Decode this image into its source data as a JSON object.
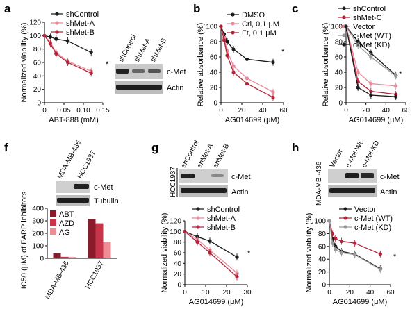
{
  "panels": {
    "a": {
      "letter": "a"
    },
    "b": {
      "letter": "b"
    },
    "c": {
      "letter": "c"
    },
    "f": {
      "letter": "f"
    },
    "g": {
      "letter": "g"
    },
    "h": {
      "letter": "h"
    }
  },
  "blots": {
    "a": {
      "lanes": [
        "shControl",
        "shMet-A",
        "shMet-B"
      ],
      "bands": [
        "c-Met",
        "Actin"
      ]
    },
    "f": {
      "lanes": [
        "MDA-MB-436",
        "HCC1937"
      ],
      "bands": [
        "c-Met",
        "Tubulin"
      ]
    },
    "g": {
      "lanes": [
        "shControl",
        "shMet-A",
        "shMet-B"
      ],
      "bands": [
        "c-Met",
        "Actin"
      ],
      "cell_line": "HCC1937"
    },
    "h": {
      "lanes": [
        "Vector",
        "c-Met-Wt",
        "c-Met-KD"
      ],
      "bands": [
        "c-Met",
        "Actin"
      ],
      "cell_line": "MDA-MB -436"
    }
  },
  "colors": {
    "black": "#1a1a1a",
    "red": "#b3243a",
    "pink": "#e88a9a",
    "gray": "#9a9a9a",
    "darkred": "#8b1a2b",
    "midred": "#c8354a",
    "lightred": "#ef8c95"
  },
  "chart_data": [
    {
      "id": "a",
      "type": "line",
      "xlabel": "ABT-888 (mM)",
      "ylabel": "Normalized viability (%)",
      "xlim": [
        0,
        0.15
      ],
      "ylim": [
        0,
        120
      ],
      "xticks": [
        "0",
        "0.05",
        "0.10",
        "0.15"
      ],
      "yticks": [
        "0",
        "20",
        "40",
        "60",
        "80",
        "100",
        "120"
      ],
      "annotation": "*",
      "series": [
        {
          "name": "shControl",
          "color": "#1a1a1a",
          "x": [
            0,
            0.015,
            0.03,
            0.06,
            0.12
          ],
          "y": [
            100,
            98,
            95,
            92,
            75
          ]
        },
        {
          "name": "shMet-A",
          "color": "#e88a9a",
          "x": [
            0,
            0.015,
            0.03,
            0.06,
            0.12
          ],
          "y": [
            100,
            90,
            75,
            62,
            47
          ]
        },
        {
          "name": "shMet-B",
          "color": "#b3243a",
          "x": [
            0,
            0.015,
            0.03,
            0.06,
            0.12
          ],
          "y": [
            100,
            88,
            73,
            60,
            44
          ]
        }
      ]
    },
    {
      "id": "b",
      "type": "line",
      "xlabel": "AG014699 (μM)",
      "ylabel": "Relative absorbance (%)",
      "xlim": [
        0,
        60
      ],
      "ylim": [
        0,
        100
      ],
      "xticks": [
        "0",
        "20",
        "40",
        "60"
      ],
      "yticks": [
        "0",
        "20",
        "40",
        "60",
        "80",
        "100"
      ],
      "annotation": "*",
      "series": [
        {
          "name": "DMSO",
          "color": "#1a1a1a",
          "x": [
            0,
            3,
            6,
            12,
            25,
            50
          ],
          "y": [
            100,
            90,
            80,
            70,
            57,
            53
          ]
        },
        {
          "name": "Cri, 0.1 μM",
          "color": "#e88a9a",
          "x": [
            0,
            3,
            6,
            12,
            25,
            50
          ],
          "y": [
            100,
            85,
            68,
            48,
            32,
            14
          ]
        },
        {
          "name": "Ft, 0.1 μM",
          "color": "#b3243a",
          "x": [
            0,
            3,
            6,
            12,
            25,
            50
          ],
          "y": [
            100,
            82,
            62,
            40,
            25,
            7
          ]
        }
      ]
    },
    {
      "id": "c",
      "type": "line",
      "xlabel": "AG014699 (μM)",
      "ylabel": "Relative absorbance (%)",
      "xlim": [
        0,
        60
      ],
      "ylim": [
        0,
        100
      ],
      "xticks": [
        "0",
        "20",
        "40",
        "60"
      ],
      "yticks": [
        "0",
        "20",
        "40",
        "60",
        "80",
        "100"
      ],
      "annotation": "*",
      "series": [
        {
          "name": "shControl",
          "color": "#1a1a1a",
          "x": [
            0,
            12,
            25,
            50
          ],
          "y": [
            100,
            80,
            65,
            36
          ]
        },
        {
          "name": "shMet-C",
          "color": "#b3243a",
          "x": [
            0,
            12,
            25,
            50
          ],
          "y": [
            100,
            28,
            15,
            11
          ]
        },
        {
          "name": "Vector",
          "color": "#e88a9a",
          "x": [
            0,
            12,
            25,
            50
          ],
          "y": [
            100,
            40,
            25,
            22
          ]
        },
        {
          "name": "c-Met (WT)",
          "color": "#9a9a9a",
          "x": [
            0,
            12,
            25,
            50
          ],
          "y": [
            100,
            75,
            60,
            35
          ]
        },
        {
          "name": "c-Met (KD)",
          "color": "#1a1a1a",
          "x": [
            0,
            12,
            25,
            50
          ],
          "y": [
            100,
            20,
            10,
            8
          ]
        }
      ]
    },
    {
      "id": "f",
      "type": "bar",
      "ylabel": "IC50 (μM) of PARP inhibitors",
      "ylim": [
        0,
        400
      ],
      "yticks": [
        "0",
        "100",
        "200",
        "300",
        "400"
      ],
      "categories": [
        "MDA-MB-436",
        "HCC1937"
      ],
      "series": [
        {
          "name": "ABT",
          "color": "#8b1a2b",
          "values": [
            40,
            315
          ]
        },
        {
          "name": "AZD",
          "color": "#c8354a",
          "values": [
            12,
            280
          ]
        },
        {
          "name": "AG",
          "color": "#ef8c95",
          "values": [
            10,
            130
          ]
        }
      ]
    },
    {
      "id": "g",
      "type": "line",
      "xlabel": "AG014699 (μM)",
      "ylabel": "Normalized viability (%)",
      "xlim": [
        0,
        30
      ],
      "ylim": [
        0,
        120
      ],
      "xticks": [
        "0",
        "10",
        "20",
        "30"
      ],
      "yticks": [
        "0",
        "20",
        "40",
        "60",
        "80",
        "100",
        "120"
      ],
      "annotation": "*",
      "series": [
        {
          "name": "shControl",
          "color": "#1a1a1a",
          "x": [
            0,
            6,
            12,
            25
          ],
          "y": [
            100,
            90,
            82,
            52
          ]
        },
        {
          "name": "shMet-A",
          "color": "#e88a9a",
          "x": [
            0,
            6,
            12,
            25
          ],
          "y": [
            100,
            85,
            65,
            22
          ]
        },
        {
          "name": "shMet-B",
          "color": "#b3243a",
          "x": [
            0,
            6,
            12,
            25
          ],
          "y": [
            100,
            80,
            60,
            15
          ]
        }
      ]
    },
    {
      "id": "h",
      "type": "line",
      "xlabel": "AG014699 (μM)",
      "ylabel": "Normalized viability (%)",
      "xlim": [
        0,
        60
      ],
      "ylim": [
        0,
        100
      ],
      "xticks": [
        "0",
        "20",
        "40",
        "60"
      ],
      "yticks": [
        "0",
        "20",
        "40",
        "60",
        "80",
        "100"
      ],
      "annotation": "*",
      "series": [
        {
          "name": "Vector",
          "color": "#1a1a1a",
          "x": [
            0,
            3,
            6,
            12,
            25,
            50
          ],
          "y": [
            100,
            72,
            60,
            52,
            48,
            25
          ]
        },
        {
          "name": "c-Met (WT)",
          "color": "#b3243a",
          "x": [
            0,
            3,
            6,
            12,
            25,
            50
          ],
          "y": [
            100,
            80,
            72,
            68,
            65,
            48
          ]
        },
        {
          "name": "c-Met (KD)",
          "color": "#9a9a9a",
          "x": [
            0,
            3,
            6,
            12,
            25,
            50
          ],
          "y": [
            100,
            65,
            55,
            50,
            47,
            24
          ]
        }
      ]
    }
  ]
}
